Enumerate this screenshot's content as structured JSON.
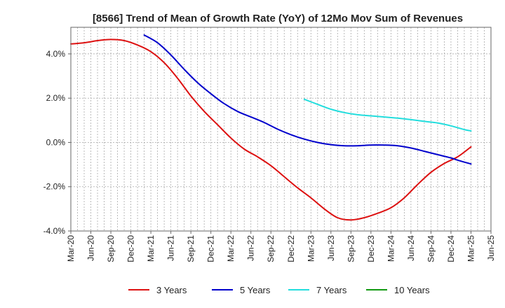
{
  "chart_data": {
    "type": "line",
    "title": "[8566]  Trend of Mean of Growth Rate (YoY) of 12Mo Mov Sum of Revenues",
    "xlabel": "",
    "ylabel": "",
    "ylim": [
      -4.0,
      5.2
    ],
    "yticks": [
      4.0,
      2.0,
      0.0,
      -2.0,
      -4.0
    ],
    "ytick_labels": [
      "4.0%",
      "2.0%",
      "0.0%",
      "-2.0%",
      "-4.0%"
    ],
    "xticks": [
      0,
      3,
      6,
      9,
      12,
      15,
      18,
      21,
      24,
      27,
      30,
      33,
      36,
      39,
      42,
      45,
      48,
      51,
      54,
      57,
      60,
      63
    ],
    "xtick_labels": [
      "Mar-20",
      "Jun-20",
      "Sep-20",
      "Dec-20",
      "Mar-21",
      "Jun-21",
      "Sep-21",
      "Dec-21",
      "Mar-22",
      "Jun-22",
      "Sep-22",
      "Dec-22",
      "Mar-23",
      "Jun-23",
      "Sep-23",
      "Dec-23",
      "Mar-24",
      "Jun-24",
      "Sep-24",
      "Dec-24",
      "Mar-25",
      "Jun-25"
    ],
    "xlim": [
      0,
      63
    ],
    "grid": true,
    "legend_position": "bottom",
    "series": [
      {
        "name": "3 Years",
        "color": "#dd1111",
        "points": [
          [
            0,
            4.45
          ],
          [
            2,
            4.5
          ],
          [
            4,
            4.6
          ],
          [
            6,
            4.65
          ],
          [
            8,
            4.6
          ],
          [
            10,
            4.4
          ],
          [
            12,
            4.1
          ],
          [
            14,
            3.6
          ],
          [
            16,
            2.9
          ],
          [
            18,
            2.1
          ],
          [
            20,
            1.4
          ],
          [
            22,
            0.8
          ],
          [
            24,
            0.2
          ],
          [
            26,
            -0.3
          ],
          [
            28,
            -0.65
          ],
          [
            30,
            -1.05
          ],
          [
            32,
            -1.55
          ],
          [
            34,
            -2.05
          ],
          [
            36,
            -2.5
          ],
          [
            38,
            -3.0
          ],
          [
            40,
            -3.4
          ],
          [
            42,
            -3.5
          ],
          [
            44,
            -3.4
          ],
          [
            46,
            -3.2
          ],
          [
            48,
            -2.95
          ],
          [
            50,
            -2.5
          ],
          [
            52,
            -1.9
          ],
          [
            54,
            -1.35
          ],
          [
            56,
            -0.95
          ],
          [
            58,
            -0.65
          ],
          [
            60,
            -0.2
          ]
        ]
      },
      {
        "name": "5 Years",
        "color": "#0000cc",
        "points": [
          [
            11,
            4.85
          ],
          [
            13,
            4.5
          ],
          [
            15,
            3.95
          ],
          [
            17,
            3.3
          ],
          [
            19,
            2.7
          ],
          [
            21,
            2.2
          ],
          [
            23,
            1.75
          ],
          [
            25,
            1.4
          ],
          [
            27,
            1.15
          ],
          [
            29,
            0.9
          ],
          [
            31,
            0.6
          ],
          [
            33,
            0.35
          ],
          [
            35,
            0.15
          ],
          [
            37,
            0.0
          ],
          [
            39,
            -0.1
          ],
          [
            41,
            -0.15
          ],
          [
            43,
            -0.15
          ],
          [
            45,
            -0.12
          ],
          [
            47,
            -0.12
          ],
          [
            49,
            -0.15
          ],
          [
            51,
            -0.25
          ],
          [
            53,
            -0.4
          ],
          [
            55,
            -0.55
          ],
          [
            57,
            -0.7
          ],
          [
            58,
            -0.8
          ],
          [
            60,
            -0.97
          ]
        ]
      },
      {
        "name": "7 Years",
        "color": "#22dddd",
        "points": [
          [
            35,
            1.95
          ],
          [
            37,
            1.72
          ],
          [
            39,
            1.5
          ],
          [
            41,
            1.35
          ],
          [
            43,
            1.25
          ],
          [
            45,
            1.2
          ],
          [
            47,
            1.15
          ],
          [
            49,
            1.1
          ],
          [
            51,
            1.03
          ],
          [
            53,
            0.95
          ],
          [
            55,
            0.88
          ],
          [
            57,
            0.75
          ],
          [
            59,
            0.58
          ],
          [
            60,
            0.52
          ]
        ]
      },
      {
        "name": "10 Years",
        "color": "#119911",
        "points": []
      }
    ]
  }
}
